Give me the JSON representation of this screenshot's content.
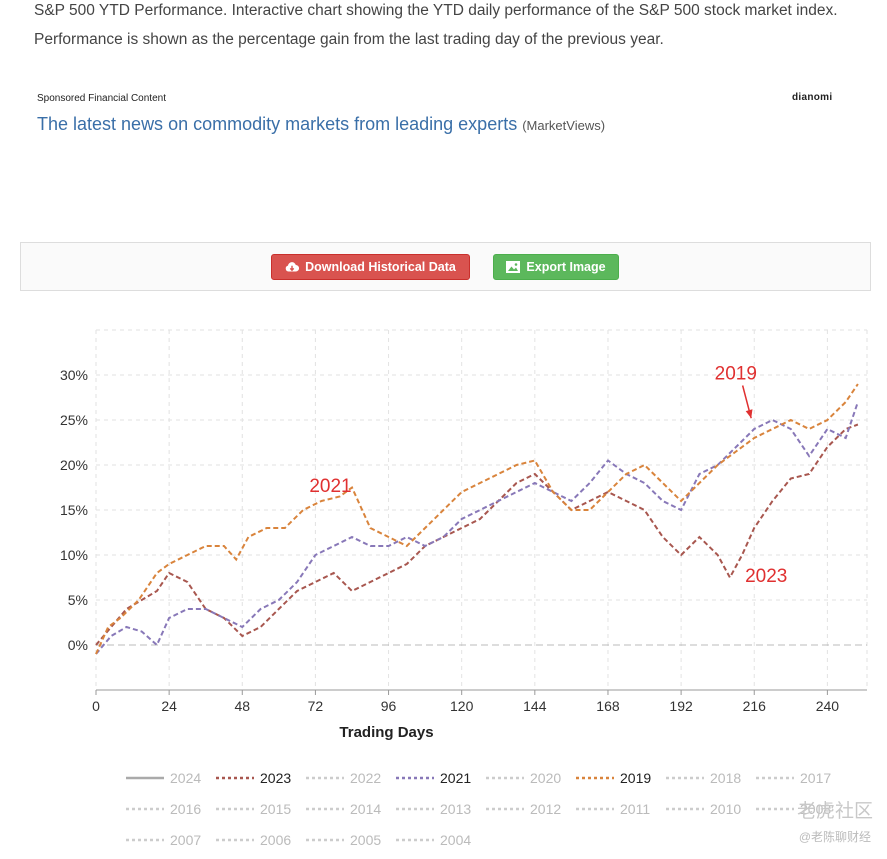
{
  "intro": {
    "text": "S&P 500 YTD Performance. Interactive chart showing the YTD daily performance of the S&P 500 stock market index. Performance is shown as the percentage gain from the last trading day of the previous year."
  },
  "ad": {
    "sponsored_label": "Sponsored Financial Content",
    "brand": "dianomi",
    "headline": "The latest news on commodity markets from leading experts",
    "source": "(MarketViews)"
  },
  "toolbar": {
    "download_label": "Download Historical Data",
    "export_label": "Export Image",
    "download_color": "#d9534f",
    "export_color": "#5cb85c",
    "download_icon": "cloud-download-icon",
    "export_icon": "image-icon"
  },
  "chart_data": {
    "type": "line",
    "xlabel": "Trading Days",
    "ylabel": "",
    "x_ticks": [
      0,
      24,
      48,
      72,
      96,
      120,
      144,
      168,
      192,
      216,
      240
    ],
    "y_ticks": [
      "0%",
      "5%",
      "10%",
      "15%",
      "20%",
      "25%",
      "30%"
    ],
    "y_tick_values": [
      0,
      5,
      10,
      15,
      20,
      25,
      30
    ],
    "xlim": [
      0,
      253
    ],
    "ylim": [
      -5,
      35
    ],
    "grid": true,
    "line_style": "dashed",
    "series": [
      {
        "name": "2023",
        "color": "#a8574f",
        "x": [
          0,
          5,
          10,
          15,
          20,
          24,
          30,
          36,
          42,
          48,
          54,
          60,
          66,
          72,
          78,
          84,
          90,
          96,
          102,
          108,
          114,
          120,
          126,
          132,
          138,
          144,
          150,
          156,
          162,
          168,
          174,
          180,
          186,
          192,
          198,
          204,
          208,
          212,
          216,
          222,
          228,
          234,
          240,
          246,
          250
        ],
        "y": [
          0,
          2,
          4,
          5,
          6,
          8,
          7,
          4,
          3,
          1,
          2,
          4,
          6,
          7,
          8,
          6,
          7,
          8,
          9,
          11,
          12,
          13,
          14,
          16,
          18,
          19,
          17,
          15,
          16,
          17,
          16,
          15,
          12,
          10,
          12,
          10,
          7.5,
          10,
          13,
          16,
          18.5,
          19,
          22,
          24,
          24.5
        ]
      },
      {
        "name": "2021",
        "color": "#8878b8",
        "x": [
          0,
          5,
          10,
          15,
          20,
          24,
          30,
          36,
          42,
          48,
          54,
          60,
          66,
          72,
          78,
          84,
          90,
          96,
          102,
          108,
          114,
          120,
          126,
          132,
          138,
          144,
          150,
          156,
          162,
          168,
          174,
          180,
          186,
          192,
          198,
          204,
          210,
          216,
          222,
          228,
          234,
          240,
          246,
          250
        ],
        "y": [
          -1,
          1,
          2,
          1.5,
          0,
          3,
          4,
          4,
          3,
          2,
          4,
          5,
          7,
          10,
          11,
          12,
          11,
          11,
          12,
          11,
          12,
          14,
          15,
          16,
          17,
          18,
          17,
          16,
          18,
          20.5,
          19,
          18,
          16,
          15,
          19,
          20,
          22,
          24,
          25,
          24,
          21,
          24,
          23,
          27
        ]
      },
      {
        "name": "2019",
        "color": "#d9843c",
        "x": [
          0,
          4,
          8,
          14,
          20,
          24,
          30,
          36,
          42,
          46,
          50,
          56,
          62,
          68,
          74,
          80,
          84,
          90,
          96,
          102,
          108,
          114,
          120,
          126,
          132,
          138,
          144,
          150,
          156,
          162,
          168,
          174,
          180,
          186,
          192,
          198,
          204,
          210,
          216,
          222,
          228,
          234,
          240,
          246,
          250
        ],
        "y": [
          -1,
          2,
          3,
          5,
          8,
          9,
          10,
          11,
          11,
          9.5,
          12,
          13,
          13,
          15,
          16,
          16.5,
          17.5,
          13,
          12,
          11,
          13,
          15,
          17,
          18,
          19,
          20,
          20.5,
          17,
          15,
          15,
          17,
          19,
          20,
          18,
          16,
          18,
          20,
          21.5,
          23,
          24,
          25,
          24,
          25,
          27,
          29
        ]
      },
      {
        "name": "2024",
        "color": "#aaaaaa",
        "x": [],
        "y": []
      },
      {
        "name": "2022",
        "color": "#cccccc",
        "x": [],
        "y": []
      },
      {
        "name": "2020",
        "color": "#cccccc",
        "x": [],
        "y": []
      },
      {
        "name": "2018",
        "color": "#cccccc",
        "x": [],
        "y": []
      },
      {
        "name": "2017",
        "color": "#cccccc",
        "x": [],
        "y": []
      },
      {
        "name": "2016",
        "color": "#cccccc",
        "x": [],
        "y": []
      },
      {
        "name": "2015",
        "color": "#cccccc",
        "x": [],
        "y": []
      },
      {
        "name": "2014",
        "color": "#cccccc",
        "x": [],
        "y": []
      },
      {
        "name": "2013",
        "color": "#cccccc",
        "x": [],
        "y": []
      },
      {
        "name": "2012",
        "color": "#cccccc",
        "x": [],
        "y": []
      },
      {
        "name": "2011",
        "color": "#cccccc",
        "x": [],
        "y": []
      },
      {
        "name": "2010",
        "color": "#cccccc",
        "x": [],
        "y": []
      },
      {
        "name": "2008",
        "color": "#cccccc",
        "x": [],
        "y": []
      },
      {
        "name": "2007",
        "color": "#cccccc",
        "x": [],
        "y": []
      },
      {
        "name": "2006",
        "color": "#cccccc",
        "x": [],
        "y": []
      },
      {
        "name": "2005",
        "color": "#cccccc",
        "x": [],
        "y": []
      },
      {
        "name": "2004",
        "color": "#cccccc",
        "x": [],
        "y": []
      }
    ],
    "legend": {
      "placement": "bottom",
      "active_color": "#222222",
      "inactive_color": "#bbbbbb",
      "items": [
        {
          "label": "2024",
          "active": false,
          "line": "solid",
          "color": "#aaaaaa"
        },
        {
          "label": "2023",
          "active": true,
          "line": "dashed",
          "color": "#a8574f"
        },
        {
          "label": "2022",
          "active": false,
          "line": "dashed",
          "color": "#cccccc"
        },
        {
          "label": "2021",
          "active": true,
          "line": "dashed",
          "color": "#8878b8"
        },
        {
          "label": "2020",
          "active": false,
          "line": "dashed",
          "color": "#cccccc"
        },
        {
          "label": "2019",
          "active": true,
          "line": "dashed",
          "color": "#d9843c"
        },
        {
          "label": "2018",
          "active": false,
          "line": "dashed",
          "color": "#cccccc"
        },
        {
          "label": "2017",
          "active": false,
          "line": "dashed",
          "color": "#cccccc"
        },
        {
          "label": "2016",
          "active": false,
          "line": "dashed",
          "color": "#cccccc"
        },
        {
          "label": "2015",
          "active": false,
          "line": "dashed",
          "color": "#cccccc"
        },
        {
          "label": "2014",
          "active": false,
          "line": "dashed",
          "color": "#cccccc"
        },
        {
          "label": "2013",
          "active": false,
          "line": "dashed",
          "color": "#cccccc"
        },
        {
          "label": "2012",
          "active": false,
          "line": "dashed",
          "color": "#cccccc"
        },
        {
          "label": "2011",
          "active": false,
          "line": "dashed",
          "color": "#cccccc"
        },
        {
          "label": "2010",
          "active": false,
          "line": "dashed",
          "color": "#cccccc"
        },
        {
          "label": "2008",
          "active": false,
          "line": "dashed",
          "color": "#cccccc"
        },
        {
          "label": "2007",
          "active": false,
          "line": "dashed",
          "color": "#cccccc"
        },
        {
          "label": "2006",
          "active": false,
          "line": "dashed",
          "color": "#cccccc"
        },
        {
          "label": "2005",
          "active": false,
          "line": "dashed",
          "color": "#cccccc"
        },
        {
          "label": "2004",
          "active": false,
          "line": "dashed",
          "color": "#cccccc"
        }
      ]
    },
    "annotations": [
      {
        "text": "2021",
        "x": 70,
        "y": 17,
        "color": "#e03030",
        "arrow": false
      },
      {
        "text": "2019",
        "x": 203,
        "y": 29.5,
        "color": "#e03030",
        "arrow": true,
        "arrow_to": {
          "x": 215,
          "y": 25.2
        }
      },
      {
        "text": "2023",
        "x": 213,
        "y": 7,
        "color": "#e03030",
        "arrow": false
      }
    ]
  },
  "watermark": {
    "text": "老虎社区",
    "handle": "@老陈聊财经"
  }
}
